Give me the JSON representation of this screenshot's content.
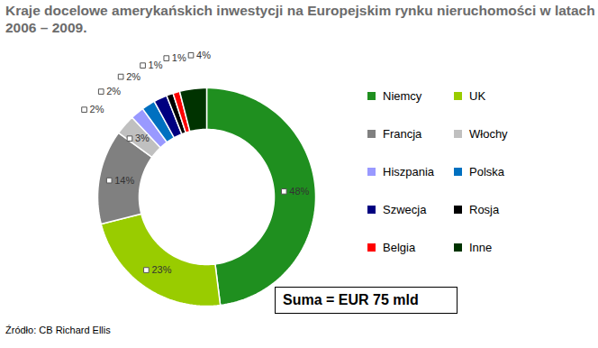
{
  "chart_data": {
    "type": "donut",
    "title": "Kraje docelowe amerykańskich inwestycji na Europejskim rynku nieruchomości w latach 2006 – 2009.",
    "categories": [
      "Niemcy",
      "UK",
      "Francja",
      "Włochy",
      "Hiszpania",
      "Polska",
      "Szwecja",
      "Rosja",
      "Belgia",
      "Inne"
    ],
    "values": [
      48,
      23,
      14,
      3,
      2,
      2,
      2,
      1,
      1,
      4
    ],
    "value_labels": [
      "48%",
      "23%",
      "14%",
      "3%",
      "2%",
      "2%",
      "2%",
      "1%",
      "1%",
      "4%"
    ],
    "colors": [
      "#1f8f1f",
      "#99cc00",
      "#808080",
      "#c0c0c0",
      "#9999ff",
      "#0070c0",
      "#000080",
      "#000000",
      "#ff0000",
      "#003300"
    ],
    "data_labels": true,
    "legend": "right",
    "annotations": [
      "Suma = EUR 75 mld"
    ],
    "source": "Źródło: CB Richard Ellis"
  }
}
